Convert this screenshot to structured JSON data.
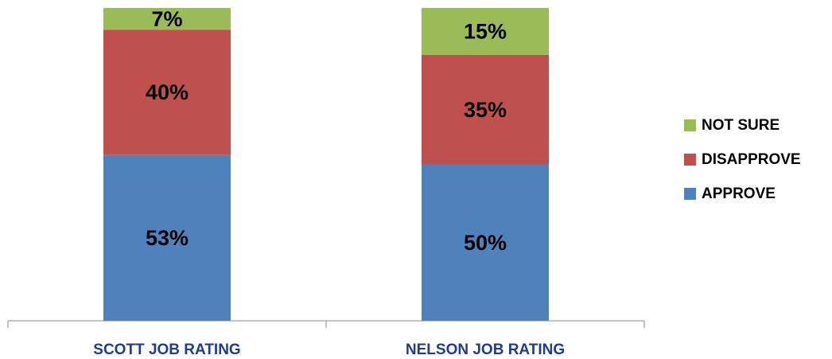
{
  "chart_data": {
    "type": "stacked_bar",
    "categories": [
      "SCOTT JOB RATING",
      "NELSON JOB RATING"
    ],
    "series": [
      {
        "name": "APPROVE",
        "color": "#4f81bd",
        "values": [
          53,
          50
        ],
        "value_labels": [
          "53%",
          "50%"
        ]
      },
      {
        "name": "DISAPPROVE",
        "color": "#c0504d",
        "values": [
          40,
          35
        ],
        "value_labels": [
          "40%",
          "35%"
        ]
      },
      {
        "name": "NOT SURE",
        "color": "#9bbb59",
        "values": [
          7,
          15
        ],
        "value_labels": [
          "7%",
          "15%"
        ]
      }
    ],
    "ylim": [
      0,
      100
    ],
    "legend": "right"
  }
}
